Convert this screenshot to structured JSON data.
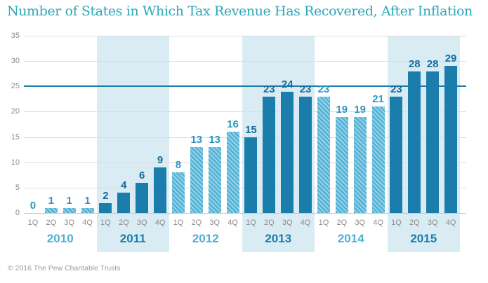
{
  "title": "Number of States in Which Tax Revenue Has Recovered, After Inflation",
  "footer": "© 2016 The Pew Charitable Trusts",
  "colors": {
    "title": "#2ea7ba",
    "solid_bar": "#1b7dab",
    "hatch_base": "#54b2d7",
    "hatch_stripe": "#9ad4e8",
    "solid_label": "#176b9c",
    "hatch_label": "#2e96c2",
    "band": "#d9ecf4",
    "gridline": "#dcdcdc",
    "axis_line": "#c4c4c4",
    "reference_line": "#1b7dab",
    "tick_label": "#8c8c8c",
    "quarter_label": "#8c8c8c",
    "year_solid": "#1b7dab",
    "year_hatch": "#4fb0d6",
    "footer_text": "#9b9b9b"
  },
  "chart_data": {
    "type": "bar",
    "title": "Number of States in Which Tax Revenue Has Recovered, After Inflation",
    "xlabel": "",
    "ylabel": "",
    "quarters": [
      "1Q",
      "2Q",
      "3Q",
      "4Q"
    ],
    "ylim": [
      0,
      35
    ],
    "yticks": [
      0,
      5,
      10,
      15,
      20,
      25,
      30,
      35
    ],
    "reference_line": 25,
    "grid": true,
    "legend": null,
    "groups": [
      {
        "year": "2010",
        "style": "hatched",
        "shaded": false,
        "values": [
          0,
          1,
          1,
          1
        ]
      },
      {
        "year": "2011",
        "style": "solid",
        "shaded": true,
        "values": [
          2,
          4,
          6,
          9
        ]
      },
      {
        "year": "2012",
        "style": "hatched",
        "shaded": false,
        "values": [
          8,
          13,
          13,
          16
        ]
      },
      {
        "year": "2013",
        "style": "solid",
        "shaded": true,
        "values": [
          15,
          23,
          24,
          23
        ]
      },
      {
        "year": "2014",
        "style": "hatched",
        "shaded": false,
        "values": [
          23,
          19,
          19,
          21
        ]
      },
      {
        "year": "2015",
        "style": "solid",
        "shaded": true,
        "values": [
          23,
          28,
          28,
          29
        ]
      }
    ]
  }
}
